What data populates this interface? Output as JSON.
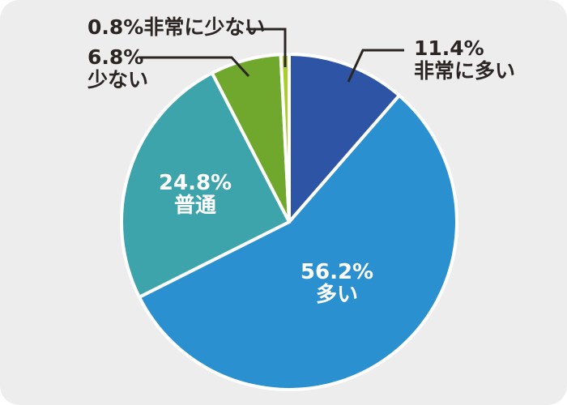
{
  "chart_data": {
    "type": "pie",
    "title": "",
    "unit": "%",
    "categories": [
      "非常に多い",
      "多い",
      "普通",
      "少ない",
      "非常に少ない"
    ],
    "values": [
      11.4,
      56.2,
      24.8,
      6.8,
      0.8
    ],
    "segment_ids": [
      "very-many",
      "many",
      "normal",
      "few",
      "very-few"
    ],
    "colors": [
      "#2E55A5",
      "#2B90D0",
      "#3EA4AB",
      "#6FA82D",
      "#A9CE2B"
    ],
    "start_angle_deg": 0,
    "direction": "clockwise",
    "legend_position": "none",
    "labels": {
      "very_many": {
        "pct": "11.4%",
        "name": "非常に多い",
        "placement": "outside"
      },
      "many": {
        "pct": "56.2%",
        "name": "多い",
        "placement": "inside"
      },
      "normal": {
        "pct": "24.8%",
        "name": "普通",
        "placement": "inside"
      },
      "few": {
        "pct": "6.8%",
        "name": "少ない",
        "placement": "outside"
      },
      "very_few": {
        "pct": "0.8%",
        "name": "非常に少ない",
        "placement": "outside"
      }
    },
    "style": {
      "background": "#EDEDED",
      "slice_border": "#FFFFFF",
      "outside_label_color": "#2B2523",
      "inside_label_color": "#FFFFFF",
      "leader_line_color": "#2B2523"
    }
  }
}
